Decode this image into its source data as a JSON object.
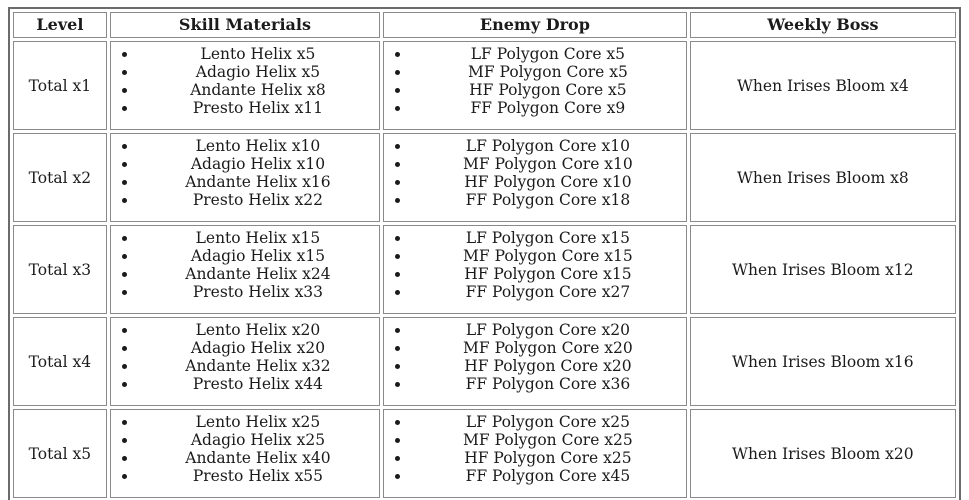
{
  "table": {
    "headers": [
      "Level",
      "Skill Materials",
      "Enemy Drop",
      "Weekly Boss"
    ],
    "rows": [
      {
        "level": "Total x1",
        "skill_materials": [
          "Lento Helix x5",
          "Adagio Helix x5",
          "Andante Helix x8",
          "Presto Helix x11"
        ],
        "enemy_drop": [
          "LF Polygon Core x5",
          "MF Polygon Core x5",
          "HF Polygon Core x5",
          "FF Polygon Core x9"
        ],
        "weekly_boss": "When Irises Bloom x4"
      },
      {
        "level": "Total x2",
        "skill_materials": [
          "Lento Helix x10",
          "Adagio Helix x10",
          "Andante Helix x16",
          "Presto Helix x22"
        ],
        "enemy_drop": [
          "LF Polygon Core x10",
          "MF Polygon Core x10",
          "HF Polygon Core x10",
          "FF Polygon Core x18"
        ],
        "weekly_boss": "When Irises Bloom x8"
      },
      {
        "level": "Total x3",
        "skill_materials": [
          "Lento Helix x15",
          "Adagio Helix x15",
          "Andante Helix x24",
          "Presto Helix x33"
        ],
        "enemy_drop": [
          "LF Polygon Core x15",
          "MF Polygon Core x15",
          "HF Polygon Core x15",
          "FF Polygon Core x27"
        ],
        "weekly_boss": "When Irises Bloom x12"
      },
      {
        "level": "Total x4",
        "skill_materials": [
          "Lento Helix x20",
          "Adagio Helix x20",
          "Andante Helix x32",
          "Presto Helix x44"
        ],
        "enemy_drop": [
          "LF Polygon Core x20",
          "MF Polygon Core x20",
          "HF Polygon Core x20",
          "FF Polygon Core x36"
        ],
        "weekly_boss": "When Irises Bloom x16"
      },
      {
        "level": "Total x5",
        "skill_materials": [
          "Lento Helix x25",
          "Adagio Helix x25",
          "Andante Helix x40",
          "Presto Helix x55"
        ],
        "enemy_drop": [
          "LF Polygon Core x25",
          "MF Polygon Core x25",
          "HF Polygon Core x25",
          "FF Polygon Core x45"
        ],
        "weekly_boss": "When Irises Bloom x20"
      }
    ]
  },
  "colors": {
    "text": "#1b1b1b",
    "outer_border": "#6b6b6b",
    "cell_border": "#8a8a8a",
    "background": "#ffffff"
  }
}
